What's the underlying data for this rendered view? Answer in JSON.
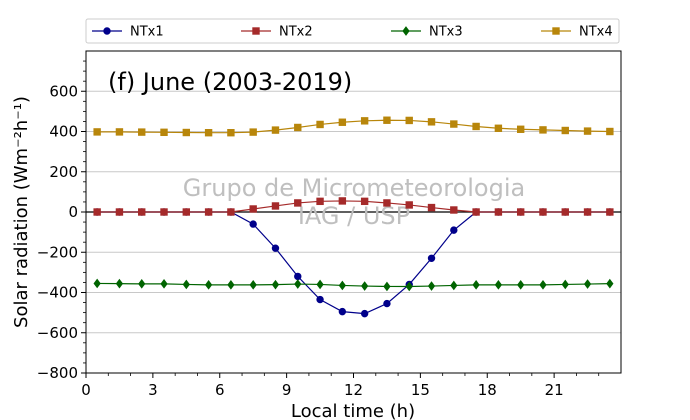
{
  "chart_data": {
    "type": "line",
    "title": "(f) June (2003-2019)",
    "xlabel": "Local time (h)",
    "ylabel": "Solar radiation (Wm⁻²h⁻¹)",
    "watermark": [
      "Grupo de Micrometeorologia",
      "IAG / USP"
    ],
    "xlim": [
      0,
      24
    ],
    "ylim": [
      -800,
      800
    ],
    "xticks": [
      0,
      3,
      6,
      9,
      12,
      15,
      18,
      21
    ],
    "yticks": [
      -800,
      -600,
      -400,
      -200,
      0,
      200,
      400,
      600
    ],
    "grid": "horizontal",
    "zero_line": true,
    "legend_position": "top-outside",
    "x": [
      0.5,
      1.5,
      2.5,
      3.5,
      4.5,
      5.5,
      6.5,
      7.5,
      8.5,
      9.5,
      10.5,
      11.5,
      12.5,
      13.5,
      14.5,
      15.5,
      16.5,
      17.5,
      18.5,
      19.5,
      20.5,
      21.5,
      22.5,
      23.5
    ],
    "series": [
      {
        "name": "NTx1",
        "color": "#00008b",
        "marker": "circle",
        "values": [
          0,
          0,
          0,
          0,
          0,
          0,
          0,
          -60,
          -180,
          -320,
          -435,
          -495,
          -505,
          -455,
          -360,
          -230,
          -90,
          0,
          0,
          0,
          0,
          0,
          0,
          0
        ]
      },
      {
        "name": "NTx2",
        "color": "#a52a2a",
        "marker": "square",
        "values": [
          0,
          0,
          0,
          0,
          0,
          0,
          0,
          15,
          30,
          45,
          53,
          55,
          53,
          45,
          35,
          22,
          10,
          0,
          0,
          0,
          0,
          0,
          0,
          0
        ]
      },
      {
        "name": "NTx3",
        "color": "#006400",
        "marker": "diamond",
        "values": [
          -355,
          -356,
          -357,
          -357,
          -360,
          -362,
          -362,
          -362,
          -361,
          -358,
          -360,
          -365,
          -368,
          -370,
          -370,
          -368,
          -365,
          -362,
          -362,
          -362,
          -362,
          -360,
          -358,
          -356
        ]
      },
      {
        "name": "NTx4",
        "color": "#b8860b",
        "marker": "square",
        "values": [
          398,
          398,
          397,
          396,
          395,
          394,
          394,
          397,
          407,
          420,
          435,
          446,
          453,
          456,
          455,
          448,
          437,
          425,
          416,
          411,
          408,
          405,
          402,
          400
        ]
      }
    ]
  }
}
